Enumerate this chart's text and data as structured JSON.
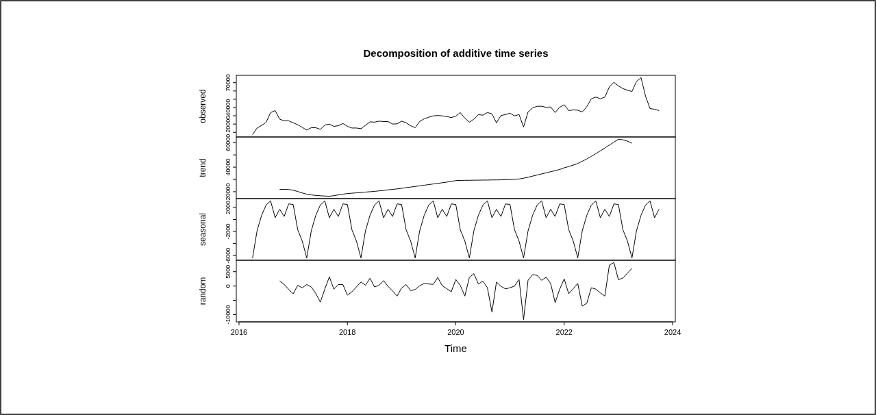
{
  "chart_data": [
    {
      "type": "line",
      "title": "Decomposition of additive time series",
      "ylabel": "observed",
      "tick_labels": "y",
      "x": [
        2016.25,
        2016.333,
        2016.417,
        2016.5,
        2016.583,
        2016.667,
        2016.75,
        2016.833,
        2016.917,
        2017,
        2017.083,
        2017.167,
        2017.25,
        2017.333,
        2017.417,
        2017.5,
        2017.583,
        2017.667,
        2017.75,
        2017.833,
        2017.917,
        2018,
        2018.083,
        2018.167,
        2018.25,
        2018.333,
        2018.417,
        2018.5,
        2018.583,
        2018.667,
        2018.75,
        2018.833,
        2018.917,
        2019,
        2019.083,
        2019.167,
        2019.25,
        2019.333,
        2019.417,
        2019.5,
        2019.583,
        2019.667,
        2019.75,
        2019.833,
        2019.917,
        2020,
        2020.083,
        2020.167,
        2020.25,
        2020.333,
        2020.417,
        2020.5,
        2020.583,
        2020.667,
        2020.75,
        2020.833,
        2020.917,
        2021,
        2021.083,
        2021.167,
        2021.25,
        2021.333,
        2021.417,
        2021.5,
        2021.583,
        2021.667,
        2021.75,
        2021.833,
        2021.917,
        2022,
        2022.083,
        2022.167,
        2022.25,
        2022.333,
        2022.417,
        2022.5,
        2022.583,
        2022.667,
        2022.75,
        2022.833,
        2022.917,
        2023,
        2023.083,
        2023.167,
        2023.25,
        2023.333,
        2023.417,
        2023.5,
        2023.583,
        2023.667,
        2023.75
      ],
      "series": [
        {
          "color": "#000000",
          "values": [
            7200,
            15200,
            18400,
            22000,
            33900,
            36300,
            25900,
            23900,
            23900,
            21500,
            19200,
            16000,
            12800,
            15600,
            15600,
            13600,
            18800,
            20000,
            17200,
            18000,
            20700,
            17200,
            15200,
            15200,
            14400,
            18400,
            22700,
            22300,
            23500,
            23100,
            23100,
            20000,
            20300,
            23500,
            21500,
            18000,
            15600,
            23100,
            26300,
            28300,
            29900,
            30300,
            29900,
            29100,
            27900,
            29500,
            33900,
            27100,
            22300,
            25900,
            31500,
            30700,
            33900,
            32300,
            21500,
            30300,
            31500,
            33100,
            29900,
            31500,
            16400,
            34700,
            39500,
            41500,
            41500,
            40300,
            40700,
            33900,
            40300,
            43400,
            36300,
            37100,
            36700,
            34700,
            41000,
            50600,
            52600,
            50600,
            52600,
            64900,
            70500,
            66100,
            62900,
            60900,
            59400,
            71300,
            76100,
            53800,
            38700,
            37900,
            36300
          ]
        }
      ],
      "xlim": [
        2015.95,
        2024.05
      ],
      "xticks": [
        2016,
        2018,
        2020,
        2022,
        2024
      ],
      "ylim": [
        4400,
        78900
      ],
      "yticks": [
        {
          "value": 10000,
          "label": null
        },
        20000,
        {
          "value": 30000,
          "label": null
        },
        40000,
        {
          "value": 50000,
          "label": null
        },
        {
          "value": 60000,
          "label": null
        },
        70000
      ]
    },
    {
      "type": "line",
      "ylabel": "trend",
      "tick_labels": "y",
      "x": [
        2016.75,
        2016.833,
        2016.917,
        2017,
        2017.083,
        2017.167,
        2017.25,
        2017.333,
        2017.417,
        2017.5,
        2017.583,
        2017.667,
        2017.75,
        2017.833,
        2017.917,
        2018,
        2018.083,
        2018.167,
        2018.25,
        2018.333,
        2018.417,
        2018.5,
        2018.583,
        2018.667,
        2018.75,
        2018.833,
        2018.917,
        2019,
        2019.083,
        2019.167,
        2019.25,
        2019.333,
        2019.417,
        2019.5,
        2019.583,
        2019.667,
        2019.75,
        2019.833,
        2019.917,
        2020,
        2020.083,
        2020.167,
        2020.25,
        2020.333,
        2020.417,
        2020.5,
        2020.583,
        2020.667,
        2020.75,
        2020.833,
        2020.917,
        2021,
        2021.083,
        2021.167,
        2021.25,
        2021.333,
        2021.417,
        2021.5,
        2021.583,
        2021.667,
        2021.75,
        2021.833,
        2021.917,
        2022,
        2022.083,
        2022.167,
        2022.25,
        2022.333,
        2022.417,
        2022.5,
        2022.583,
        2022.667,
        2022.75,
        2022.833,
        2022.917,
        2023,
        2023.083,
        2023.167,
        2023.25
      ],
      "series": [
        {
          "color": "#000000",
          "values": [
            21900,
            21900,
            21800,
            21200,
            20200,
            19000,
            18000,
            17400,
            17000,
            16700,
            16500,
            16300,
            16800,
            17400,
            18000,
            18500,
            18800,
            19100,
            19400,
            19700,
            20000,
            20300,
            20700,
            21100,
            21500,
            21900,
            22300,
            22800,
            23300,
            23800,
            24300,
            24800,
            25300,
            25800,
            26300,
            26800,
            27300,
            27800,
            28400,
            29100,
            29200,
            29300,
            29300,
            29400,
            29400,
            29500,
            29500,
            29600,
            29600,
            29700,
            29800,
            29900,
            30100,
            30400,
            31000,
            31800,
            32700,
            33600,
            34500,
            35400,
            36300,
            37200,
            38100,
            39500,
            40500,
            41700,
            43000,
            44800,
            46700,
            48800,
            51000,
            53300,
            55600,
            58000,
            60400,
            62700,
            62300,
            61200,
            59500
          ]
        }
      ],
      "xlim": [
        2015.95,
        2024.05
      ],
      "xticks": [
        2016,
        2018,
        2020,
        2022,
        2024
      ],
      "ylim": [
        14400,
        64600
      ],
      "yticks": [
        20000,
        {
          "value": 30000,
          "label": null
        },
        40000,
        {
          "value": 50000,
          "label": null
        },
        60000
      ]
    },
    {
      "type": "line",
      "ylabel": "seasonal",
      "tick_labels": "y",
      "x": [
        2016.25,
        2016.333,
        2016.417,
        2016.5,
        2016.583,
        2016.667,
        2016.75,
        2016.833,
        2016.917,
        2017,
        2017.083,
        2017.167,
        2017.25,
        2017.333,
        2017.417,
        2017.5,
        2017.583,
        2017.667,
        2017.75,
        2017.833,
        2017.917,
        2018,
        2018.083,
        2018.167,
        2018.25,
        2018.333,
        2018.417,
        2018.5,
        2018.583,
        2018.667,
        2018.75,
        2018.833,
        2018.917,
        2019,
        2019.083,
        2019.167,
        2019.25,
        2019.333,
        2019.417,
        2019.5,
        2019.583,
        2019.667,
        2019.75,
        2019.833,
        2019.917,
        2020,
        2020.083,
        2020.167,
        2020.25,
        2020.333,
        2020.417,
        2020.5,
        2020.583,
        2020.667,
        2020.75,
        2020.833,
        2020.917,
        2021,
        2021.083,
        2021.167,
        2021.25,
        2021.333,
        2021.417,
        2021.5,
        2021.583,
        2021.667,
        2021.75,
        2021.833,
        2021.917,
        2022,
        2022.083,
        2022.167,
        2022.25,
        2022.333,
        2022.417,
        2022.5,
        2022.583,
        2022.667,
        2022.75,
        2022.833,
        2022.917,
        2023,
        2023.083,
        2023.167,
        2023.25,
        2023.333,
        2023.417,
        2023.5,
        2023.583,
        2023.667,
        2023.75
      ],
      "series": [
        {
          "color": "#000000",
          "values": [
            -6400,
            -1900,
            700,
            2400,
            3100,
            300,
            1700,
            500,
            2600,
            2500,
            -1700,
            -3600,
            -6400,
            -1900,
            700,
            2400,
            3100,
            300,
            1700,
            500,
            2600,
            2500,
            -1700,
            -3600,
            -6400,
            -1900,
            700,
            2400,
            3100,
            300,
            1700,
            500,
            2600,
            2500,
            -1700,
            -3600,
            -6400,
            -1900,
            700,
            2400,
            3100,
            300,
            1700,
            500,
            2600,
            2500,
            -1700,
            -3600,
            -6400,
            -1900,
            700,
            2400,
            3100,
            300,
            1700,
            500,
            2600,
            2500,
            -1700,
            -3600,
            -6400,
            -1900,
            700,
            2400,
            3100,
            300,
            1700,
            500,
            2600,
            2500,
            -1700,
            -3600,
            -6400,
            -1900,
            700,
            2400,
            3100,
            300,
            1700,
            500,
            2600,
            2500,
            -1700,
            -3600,
            -6400,
            -1900,
            700,
            2400,
            3100,
            300,
            1700
          ]
        }
      ],
      "xlim": [
        2015.95,
        2024.05
      ],
      "xticks": [
        2016,
        2018,
        2020,
        2022,
        2024
      ],
      "ylim": [
        -6780,
        3480
      ],
      "yticks": [
        -6000,
        {
          "value": -4000,
          "label": null
        },
        -2000,
        {
          "value": 0,
          "label": null
        },
        2000
      ]
    },
    {
      "type": "line",
      "ylabel": "random",
      "xlabel": "Time",
      "x": [
        2016.75,
        2016.833,
        2016.917,
        2017,
        2017.083,
        2017.167,
        2017.25,
        2017.333,
        2017.417,
        2017.5,
        2017.583,
        2017.667,
        2017.75,
        2017.833,
        2017.917,
        2018,
        2018.083,
        2018.167,
        2018.25,
        2018.333,
        2018.417,
        2018.5,
        2018.583,
        2018.667,
        2018.75,
        2018.833,
        2018.917,
        2019,
        2019.083,
        2019.167,
        2019.25,
        2019.333,
        2019.417,
        2019.5,
        2019.583,
        2019.667,
        2019.75,
        2019.833,
        2019.917,
        2020,
        2020.083,
        2020.167,
        2020.25,
        2020.333,
        2020.417,
        2020.5,
        2020.583,
        2020.667,
        2020.75,
        2020.833,
        2020.917,
        2021,
        2021.083,
        2021.167,
        2021.25,
        2021.333,
        2021.417,
        2021.5,
        2021.583,
        2021.667,
        2021.75,
        2021.833,
        2021.917,
        2022,
        2022.083,
        2022.167,
        2022.25,
        2022.333,
        2022.417,
        2022.5,
        2022.583,
        2022.667,
        2022.75,
        2022.833,
        2022.917,
        2023,
        2023.083,
        2023.167,
        2023.25
      ],
      "series": [
        {
          "color": "#000000",
          "values": [
            1800,
            600,
            -1200,
            -2700,
            200,
            -600,
            500,
            -300,
            -2600,
            -5600,
            -1100,
            3200,
            -1100,
            500,
            500,
            -3200,
            -2000,
            -300,
            1400,
            300,
            2700,
            -300,
            200,
            1900,
            -100,
            -1700,
            -3500,
            -700,
            500,
            -1600,
            -1200,
            100,
            900,
            700,
            600,
            3000,
            100,
            -900,
            -2000,
            2300,
            200,
            -3500,
            3000,
            4300,
            700,
            1700,
            -600,
            -9100,
            1400,
            -100,
            -1000,
            -600,
            0,
            2300,
            -11700,
            2000,
            4000,
            3700,
            2000,
            3100,
            900,
            -5800,
            -1100,
            2500,
            -2700,
            -900,
            900,
            -7000,
            -6000,
            -600,
            -1100,
            -2400,
            -3500,
            7300,
            8200,
            2200,
            2800,
            4500,
            6200
          ]
        }
      ],
      "xlim": [
        2015.95,
        2024.05
      ],
      "xticks": [
        2016,
        2018,
        2020,
        2022,
        2024
      ],
      "ylim": [
        -12500,
        9000
      ],
      "yticks": [
        -10000,
        {
          "value": -5000,
          "label": null
        },
        0,
        5000
      ]
    }
  ]
}
